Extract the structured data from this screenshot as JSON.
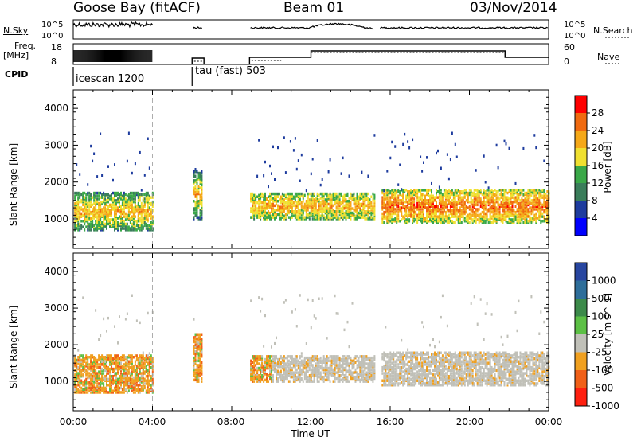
{
  "header": {
    "station": "Goose Bay (fitACF)",
    "beam": "Beam 01",
    "date": "03/Nov/2014"
  },
  "summary_panels": {
    "nsky_label": "N.Sky",
    "nsky_ticks": [
      "10^5",
      "10^0"
    ],
    "nsearch_label": "N.Search",
    "nsearch_ticks": [
      "10^5",
      "10^0"
    ],
    "freq_label_line1": "Freq.",
    "freq_label_line2": "[MHz]",
    "freq_ticks": [
      "18",
      "8"
    ],
    "nave_label": "Nave",
    "nave_ticks": [
      "60",
      "0"
    ],
    "cpid_label": "CPID",
    "cpid_segments": [
      {
        "start": 0.0,
        "name": "icescan 1200"
      },
      {
        "start": 6.0,
        "name": "tau (fast) 503"
      }
    ]
  },
  "colors": {
    "power": [
      "#0000ff",
      "#1e3c9e",
      "#3a7d5a",
      "#3aa848",
      "#f0e030",
      "#f5a818",
      "#f06a10",
      "#ff0000"
    ],
    "velocity": [
      "#2846a0",
      "#2e6e9a",
      "#3c8a4a",
      "#5cc045",
      "#c0c0b8",
      "#f0a020",
      "#f06018",
      "#ff2010"
    ]
  },
  "chart_data": [
    {
      "type": "heatmap",
      "x_unit": "hours",
      "xlim": [
        0,
        24
      ],
      "x_tick_labels": [
        "00:00",
        "04:00",
        "08:00",
        "12:00",
        "16:00",
        "20:00",
        "00:00"
      ],
      "xlabel": "Time UT",
      "ylabel": "Slant Range [km]",
      "ylim": [
        200,
        4500
      ],
      "y_ticks": [
        1000,
        2000,
        3000,
        4000
      ],
      "colorbar_label": "Power [dB]",
      "colorbar_ticks": [
        "4",
        "8",
        "12",
        "16",
        "20",
        "24",
        "28"
      ],
      "data_gaps_hours": [
        [
          4.0,
          6.0
        ],
        [
          6.5,
          8.9
        ],
        [
          15.2,
          15.5
        ]
      ],
      "scatter_regions": [
        {
          "t0": 0.0,
          "t1": 4.0,
          "r0": 700,
          "r1": 1700,
          "level": 5
        },
        {
          "t0": 6.0,
          "t1": 6.5,
          "r0": 1000,
          "r1": 2300,
          "level": 5
        },
        {
          "t0": 8.9,
          "t1": 15.2,
          "r0": 1000,
          "r1": 1700,
          "level": 5
        },
        {
          "t0": 15.5,
          "t1": 24.0,
          "r0": 900,
          "r1": 1800,
          "level": 6
        }
      ]
    },
    {
      "type": "heatmap",
      "x_unit": "hours",
      "xlim": [
        0,
        24
      ],
      "x_tick_labels": [
        "00:00",
        "04:00",
        "08:00",
        "12:00",
        "16:00",
        "20:00",
        "00:00"
      ],
      "xlabel": "Time UT",
      "ylabel": "Slant Range [km]",
      "ylim": [
        200,
        4500
      ],
      "y_ticks": [
        1000,
        2000,
        3000,
        4000
      ],
      "colorbar_label": "Velocity [m s^-1]",
      "colorbar_ticks": [
        "1000",
        "500",
        "100",
        "25",
        "-25",
        "-100",
        "-500",
        "-1000"
      ],
      "data_gaps_hours": [
        [
          4.0,
          6.0
        ],
        [
          6.5,
          8.9
        ],
        [
          15.2,
          15.5
        ]
      ],
      "ground_scatter_color": "#c0c0b8"
    }
  ]
}
